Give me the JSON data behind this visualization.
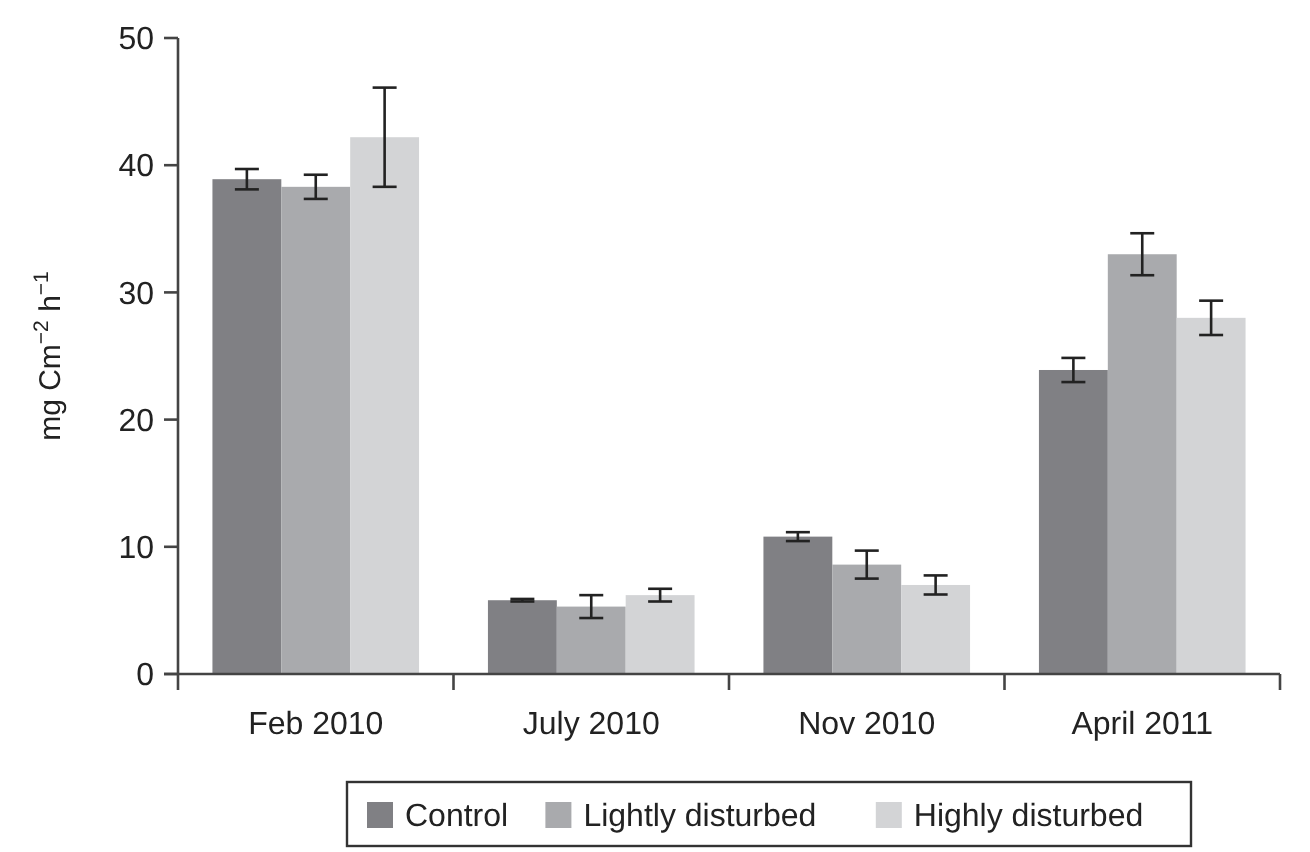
{
  "chart_data": {
    "type": "bar",
    "ylabel": "mg Cm$^{−2}$ h$^{−1}$",
    "categories": [
      "Feb 2010",
      "July 2010",
      "Nov 2010",
      "April 2011"
    ],
    "ylim": [
      0,
      50
    ],
    "yticks": [
      0,
      10,
      20,
      30,
      40,
      50
    ],
    "legend": "bottom",
    "grid": false,
    "series": [
      {
        "name": "Control",
        "color": "#808084",
        "values": [
          38.9,
          5.8,
          10.8,
          23.9
        ],
        "errors": [
          0.8,
          0.1,
          0.35,
          0.95
        ]
      },
      {
        "name": "Lightly disturbed",
        "color": "#a9aaad",
        "values": [
          38.3,
          5.3,
          8.6,
          33.0
        ],
        "errors": [
          0.95,
          0.9,
          1.1,
          1.65
        ]
      },
      {
        "name": "Highly disturbed",
        "color": "#d3d4d6",
        "values": [
          42.2,
          6.2,
          7.0,
          28.0
        ],
        "errors": [
          3.9,
          0.5,
          0.75,
          1.35
        ]
      }
    ]
  }
}
